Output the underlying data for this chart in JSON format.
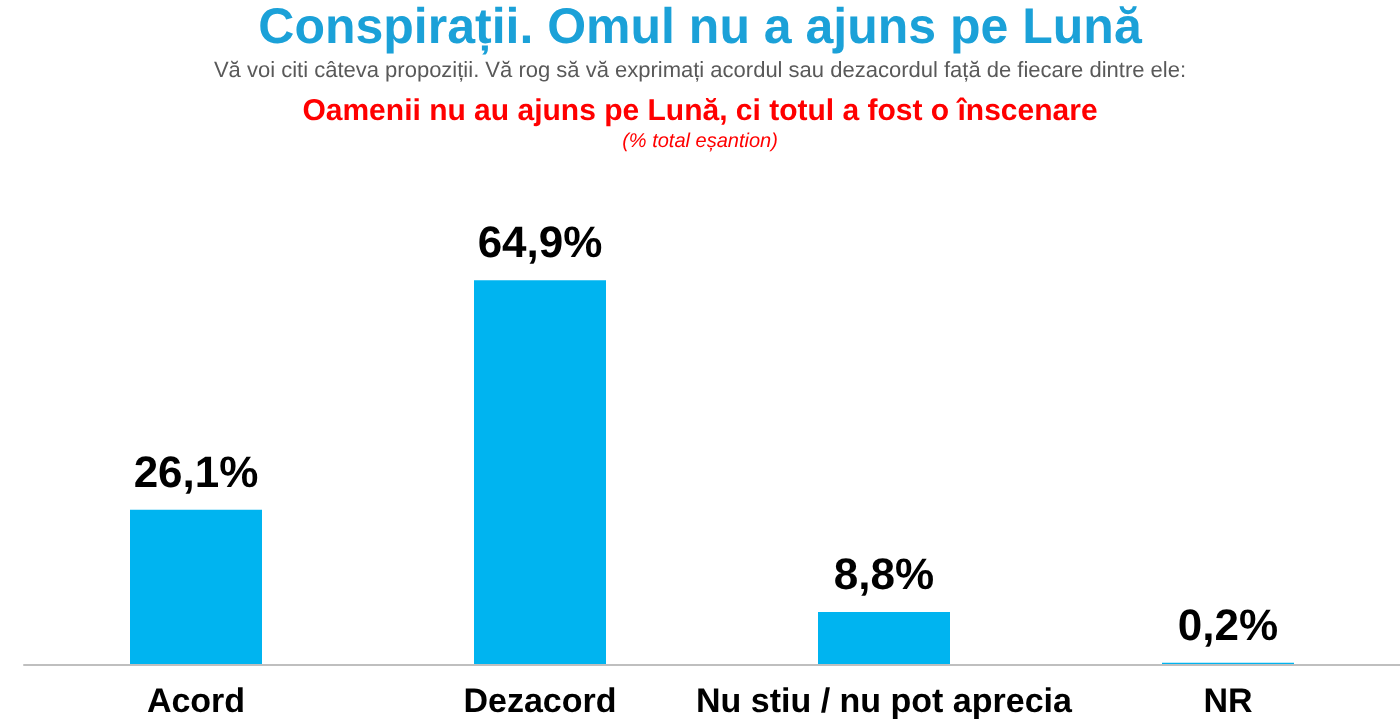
{
  "chart_data": {
    "type": "bar",
    "title": "Conspirații. Omul nu a ajuns pe Lună",
    "subtitle": "Vă voi citi câteva propoziții. Vă rog să vă exprimați acordul sau dezacordul față de fiecare dintre ele:",
    "annotations": [
      "Oamenii nu au ajuns pe Lună, ci totul a fost o înscenare",
      "(% total eșantion)"
    ],
    "categories": [
      "Acord",
      "Dezacord",
      "Nu stiu / nu pot aprecia",
      "NR"
    ],
    "values": [
      26.1,
      64.9,
      8.8,
      0.2
    ],
    "value_labels": [
      "26,1%",
      "64,9%",
      "8,8%",
      "0,2%"
    ],
    "color": "#00b4f0"
  }
}
